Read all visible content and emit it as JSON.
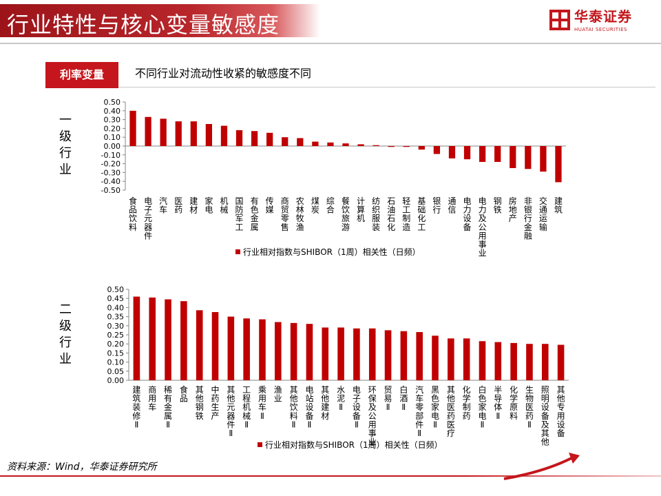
{
  "header": {
    "title": "行业特性与核心变量敏感度",
    "logo_cn": "华泰证券",
    "logo_en": "HUATAI SECURITIES",
    "logo_icon": "huatai-logo-icon",
    "brand_color": "#c4161c"
  },
  "section": {
    "tag": "利率变量",
    "subtitle": "不同行业对流动性收紧的敏感度不同"
  },
  "side_labels": {
    "level1": [
      "一",
      "级",
      "行",
      "业"
    ],
    "level2": [
      "二",
      "级",
      "行",
      "业"
    ]
  },
  "source": "资料来源：Wind，华泰证券研究所",
  "chart_data": [
    {
      "type": "bar",
      "categories": [
        "食品饮料",
        "电子元器件",
        "汽车",
        "医药",
        "建材",
        "家电",
        "机械",
        "国防军工",
        "有色金属",
        "传媒",
        "商贸零售",
        "农林牧渔",
        "煤炭",
        "综合",
        "餐饮旅游",
        "计算机",
        "纺织服装",
        "石油石化",
        "轻工制造",
        "基础化工",
        "银行",
        "通信",
        "电力设备",
        "电力及公用事业",
        "钢铁",
        "房地产",
        "非银行金融",
        "交通运输",
        "建筑"
      ],
      "series": [
        {
          "name": "行业相对指数与SHIBOR（1周）相关性（日频）",
          "color": "#c00000",
          "values": [
            0.4,
            0.33,
            0.31,
            0.28,
            0.28,
            0.25,
            0.23,
            0.18,
            0.17,
            0.15,
            0.1,
            0.09,
            0.05,
            0.04,
            0.03,
            0.02,
            0.01,
            -0.01,
            -0.01,
            -0.04,
            -0.09,
            -0.14,
            -0.15,
            -0.18,
            -0.18,
            -0.25,
            -0.26,
            -0.29,
            -0.41
          ]
        }
      ],
      "ylim": [
        -0.5,
        0.5
      ],
      "yticks": [
        "0.50",
        "0.40",
        "0.30",
        "0.20",
        "0.10",
        "0.00",
        "-0.10",
        "-0.20",
        "-0.30",
        "-0.40",
        "-0.50"
      ],
      "legend": "bottom"
    },
    {
      "type": "bar",
      "categories": [
        "建筑装修Ⅱ",
        "商用车",
        "稀有金属Ⅱ",
        "食品",
        "其他钢铁",
        "中药生产",
        "其他元器件Ⅱ",
        "工程机械Ⅱ",
        "乘用车Ⅱ",
        "渔业",
        "其他饮料Ⅱ",
        "电站设备Ⅱ",
        "其他建材",
        "水泥Ⅱ",
        "电子设备Ⅱ",
        "环保及公用事业",
        "贸易Ⅱ",
        "白酒Ⅱ",
        "汽车零部件Ⅱ",
        "黑色家电Ⅱ",
        "其他医药医疗",
        "化学制药",
        "白色家电Ⅱ",
        "半导体Ⅱ",
        "化学原料",
        "生物医药Ⅱ",
        "照明设备及其他",
        "其他专用设备"
      ],
      "series": [
        {
          "name": "行业相对指数与SHIBOR（1周）相关性（日频）",
          "color": "#c00000",
          "values": [
            0.46,
            0.455,
            0.445,
            0.435,
            0.385,
            0.375,
            0.35,
            0.34,
            0.335,
            0.32,
            0.315,
            0.31,
            0.29,
            0.29,
            0.285,
            0.285,
            0.275,
            0.27,
            0.265,
            0.245,
            0.23,
            0.23,
            0.215,
            0.21,
            0.205,
            0.2,
            0.2,
            0.195
          ]
        }
      ],
      "ylim": [
        0,
        0.5
      ],
      "yticks": [
        "0.50",
        "0.45",
        "0.40",
        "0.35",
        "0.30",
        "0.25",
        "0.20",
        "0.15",
        "0.10",
        "0.05",
        "0.00"
      ],
      "legend": "bottom"
    }
  ]
}
